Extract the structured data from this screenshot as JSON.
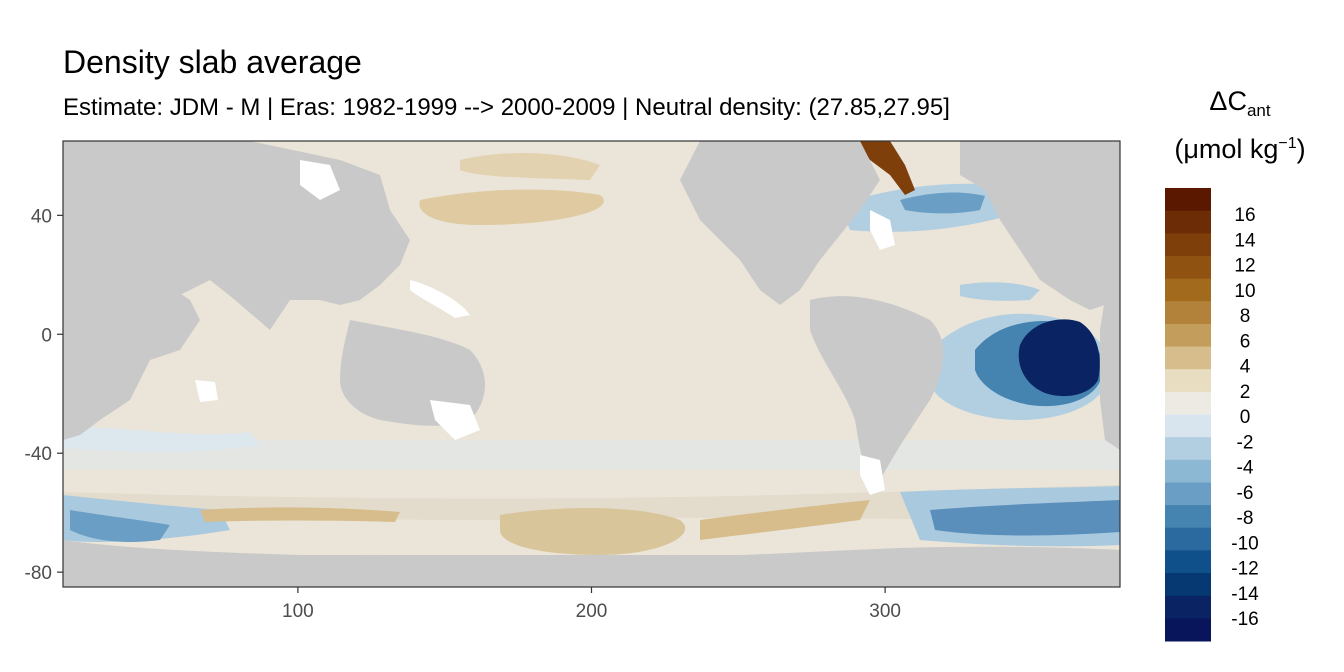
{
  "title": "Density slab average",
  "subtitle": "Estimate: JDM - M | Eras: 1982-1999 --> 2000-2009 | Neutral density: (27.85,27.95]",
  "legend": {
    "title_symbol": "ΔC",
    "title_subscript": "ant",
    "unit_open": "(μmol kg",
    "unit_superscript": "−1",
    "unit_close": ")",
    "labels": [
      "16",
      "14",
      "12",
      "10",
      "8",
      "6",
      "4",
      "2",
      "0",
      "-2",
      "-4",
      "-6",
      "-8",
      "-10",
      "-12",
      "-14",
      "-16"
    ],
    "colors": [
      "#5a1800",
      "#6b2c06",
      "#7e3f0b",
      "#8f5210",
      "#a16a1c",
      "#b2823a",
      "#c39d5c",
      "#d6bd8b",
      "#e8dcc1",
      "#edeae3",
      "#d9e5ee",
      "#b2cfe2",
      "#8cb8d4",
      "#6a9ec4",
      "#4583b1",
      "#2a6a9f",
      "#0f4f8a",
      "#063872",
      "#0a2363",
      "#08155a"
    ]
  },
  "axes": {
    "x_ticks": [
      {
        "value": 100,
        "label": "100"
      },
      {
        "value": 200,
        "label": "200"
      },
      {
        "value": 300,
        "label": "300"
      }
    ],
    "y_ticks": [
      {
        "value": 40,
        "label": "40"
      },
      {
        "value": 0,
        "label": "0"
      },
      {
        "value": -40,
        "label": "-40"
      },
      {
        "value": -80,
        "label": "-80"
      }
    ],
    "xlim": [
      20,
      380
    ],
    "ylim": [
      -85,
      65
    ]
  },
  "map": {
    "land_color": "#c9c9c9",
    "ocean_default_color": "#ebe4d8",
    "missing_color": "#ffffff"
  }
}
